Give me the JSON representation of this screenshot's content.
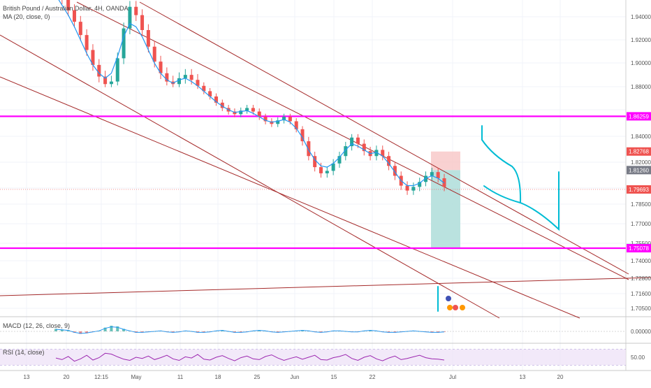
{
  "header": {
    "symbol_title": "British Pound / Australian Dollar, 4H, OANDA",
    "ma_label": "MA (20, close, 0)",
    "macd_label": "MACD (12, 26, close, 9)",
    "rsi_label": "RSI (14, close)"
  },
  "colors": {
    "horizontal_level": "#ff00ff",
    "channel_line": "#a52a2a",
    "drawing": "#00bcd4",
    "candle_up": "#26a69a",
    "candle_down": "#ef5350",
    "ma": "#2196f3",
    "stop_zone": "#f7c5c5",
    "target_zone": "#b2dfdb",
    "rsi": "#9c27b0",
    "rsi_band": "#ede0f7"
  },
  "chart_data": {
    "type": "candlestick",
    "price_axis": {
      "ticks": [
        "1.94000",
        "1.92000",
        "1.90000",
        "1.88000",
        "1.84000",
        "1.82000",
        "1.80000",
        "1.78500",
        "1.77000",
        "1.75500",
        "1.74000",
        "1.72800",
        "1.71600",
        "1.70500"
      ]
    },
    "time_axis": {
      "ticks": [
        "13",
        "20",
        "12:15",
        "May",
        "11",
        "18",
        "25",
        "Jun",
        "15",
        "22",
        "Jul",
        "13",
        "20"
      ]
    },
    "price_labels": [
      {
        "value": "1.86259",
        "color": "#ff00ff"
      },
      {
        "value": "1.82768",
        "color": "#ef5350"
      },
      {
        "value": "1.81260",
        "color": "#787b86"
      },
      {
        "value": "1.79693",
        "color": "#ef5350"
      },
      {
        "value": "1.75092",
        "color": "#089981"
      },
      {
        "value": "1.75078",
        "color": "#ff00ff"
      }
    ],
    "horizontal_levels": [
      1.86259,
      1.75078
    ],
    "position": {
      "entry": 1.8126,
      "stop": 1.82768,
      "target": 1.75092
    },
    "series": [
      {
        "name": "GBPAUD",
        "values": [
          1.958,
          1.951,
          1.944,
          1.937,
          1.929,
          1.92,
          1.911,
          1.904,
          1.899,
          1.901,
          1.915,
          1.933,
          1.946,
          1.941,
          1.932,
          1.922,
          1.913,
          1.906,
          1.901,
          1.899,
          1.903,
          1.905,
          1.902,
          1.897,
          1.891,
          1.885,
          1.878,
          1.872,
          1.868,
          1.865,
          1.869,
          1.872,
          1.868,
          1.862,
          1.857,
          1.854,
          1.858,
          1.862,
          1.857,
          1.848,
          1.836,
          1.824,
          1.815,
          1.81,
          1.812,
          1.818,
          1.824,
          1.832,
          1.839,
          1.834,
          1.828,
          1.824,
          1.829,
          1.824,
          1.816,
          1.808,
          1.8,
          1.796,
          1.799,
          1.803,
          1.808,
          1.811,
          1.806,
          1.799
        ]
      },
      {
        "name": "MA (20, close, 0)",
        "values": [
          1.953,
          1.947,
          1.941,
          1.934,
          1.926,
          1.918,
          1.911,
          1.906,
          1.903,
          1.906,
          1.916,
          1.928,
          1.936,
          1.934,
          1.928,
          1.92,
          1.912,
          1.906,
          1.902,
          1.9,
          1.902,
          1.903,
          1.901,
          1.897,
          1.891,
          1.885,
          1.879,
          1.874,
          1.87,
          1.867,
          1.868,
          1.869,
          1.866,
          1.862,
          1.858,
          1.856,
          1.857,
          1.859,
          1.856,
          1.849,
          1.839,
          1.829,
          1.821,
          1.816,
          1.815,
          1.818,
          1.823,
          1.829,
          1.834,
          1.832,
          1.829,
          1.826,
          1.827,
          1.824,
          1.818,
          1.811,
          1.804,
          1.8,
          1.8,
          1.802,
          1.806,
          1.808,
          1.806,
          1.802
        ]
      }
    ],
    "macd_axis_tick": "0.00000",
    "rsi_axis_tick": "50.00",
    "macd_values": [
      0.004,
      0.003,
      0.002,
      -0.002,
      -0.004,
      -0.003,
      -0.001,
      0.001,
      0.006,
      0.009,
      0.008,
      0.004,
      0.001,
      -0.002,
      -0.002,
      -0.001,
      0.0,
      0.001,
      -0.001,
      -0.002,
      -0.001,
      0.001,
      0.0,
      -0.002,
      -0.002,
      -0.001,
      0.001,
      0.002,
      0.0,
      -0.002,
      -0.002,
      -0.001,
      0.001,
      0.002,
      0.001,
      -0.001,
      -0.002,
      -0.001,
      0.0,
      0.001,
      0.002,
      0.001,
      -0.001,
      -0.002,
      -0.001,
      0.001,
      0.001,
      0.0,
      -0.001,
      -0.001,
      0.001,
      0.002,
      0.001,
      -0.001,
      -0.002,
      -0.002,
      -0.001,
      0.0,
      0.001,
      0.0,
      -0.001,
      -0.002,
      -0.002,
      -0.001
    ],
    "rsi_values": [
      48,
      44,
      52,
      40,
      46,
      55,
      43,
      49,
      60,
      58,
      51,
      45,
      42,
      50,
      47,
      53,
      44,
      49,
      55,
      46,
      42,
      51,
      48,
      57,
      45,
      43,
      50,
      54,
      47,
      41,
      49,
      53,
      46,
      44,
      52,
      56,
      48,
      42,
      47,
      51,
      45,
      50,
      55,
      44,
      43,
      49,
      52,
      57,
      47,
      42,
      50,
      54,
      46,
      41,
      48,
      53,
      44,
      47,
      51,
      55,
      49,
      46,
      45,
      43
    ]
  }
}
